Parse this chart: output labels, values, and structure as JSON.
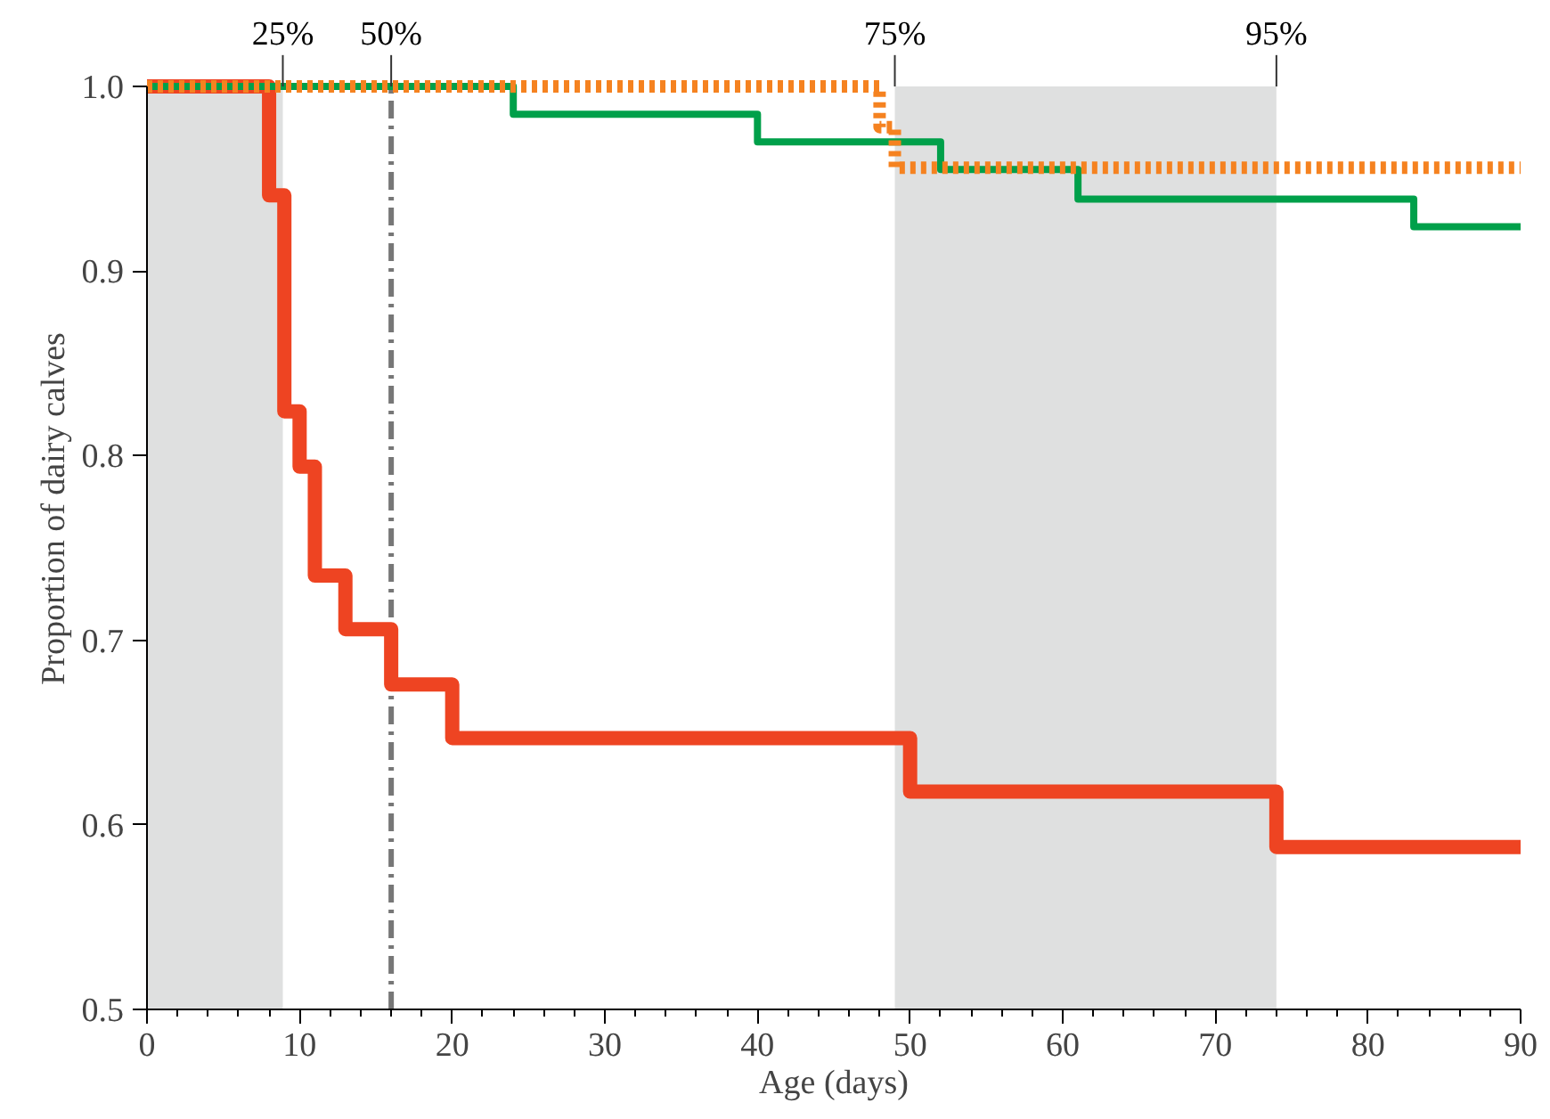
{
  "chart_data": {
    "type": "step",
    "xlabel": "Age (days)",
    "ylabel": "Proportion of dairy calves",
    "series": [
      {
        "color": "#ee4422",
        "line_style": "solid",
        "x": [
          0,
          8,
          9,
          10,
          11,
          13,
          16,
          20,
          50,
          74,
          90
        ],
        "values": [
          1.0,
          0.941,
          0.824,
          0.794,
          0.735,
          0.706,
          0.676,
          0.647,
          0.618,
          0.588,
          0.588
        ]
      },
      {
        "color": "#00a04a",
        "line_style": "solid",
        "x": [
          0,
          24,
          40,
          52,
          61,
          83,
          90
        ],
        "values": [
          1.0,
          0.985,
          0.97,
          0.955,
          0.939,
          0.924,
          0.924
        ]
      },
      {
        "color": "#f58220",
        "line_style": "dotted",
        "x": [
          0,
          48,
          49,
          90
        ],
        "values": [
          1.0,
          0.978,
          0.956,
          0.956
        ]
      }
    ],
    "xlim": [
      0,
      90
    ],
    "ylim": [
      0.5,
      1.0
    ],
    "xticks": [
      0,
      {
        "value": 2,
        "label": null
      },
      {
        "value": 4,
        "label": null
      },
      {
        "value": 6,
        "label": null
      },
      {
        "value": 8,
        "label": null
      },
      10,
      {
        "value": 12,
        "label": null
      },
      {
        "value": 14,
        "label": null
      },
      {
        "value": 16,
        "label": null
      },
      {
        "value": 18,
        "label": null
      },
      20,
      {
        "value": 22,
        "label": null
      },
      {
        "value": 24,
        "label": null
      },
      {
        "value": 26,
        "label": null
      },
      {
        "value": 28,
        "label": null
      },
      30,
      {
        "value": 32,
        "label": null
      },
      {
        "value": 34,
        "label": null
      },
      {
        "value": 36,
        "label": null
      },
      {
        "value": 38,
        "label": null
      },
      40,
      {
        "value": 42,
        "label": null
      },
      {
        "value": 44,
        "label": null
      },
      {
        "value": 46,
        "label": null
      },
      {
        "value": 48,
        "label": null
      },
      50,
      {
        "value": 52,
        "label": null
      },
      {
        "value": 54,
        "label": null
      },
      {
        "value": 56,
        "label": null
      },
      {
        "value": 58,
        "label": null
      },
      60,
      {
        "value": 62,
        "label": null
      },
      {
        "value": 64,
        "label": null
      },
      {
        "value": 66,
        "label": null
      },
      {
        "value": 68,
        "label": null
      },
      70,
      {
        "value": 72,
        "label": null
      },
      {
        "value": 74,
        "label": null
      },
      {
        "value": 76,
        "label": null
      },
      {
        "value": 78,
        "label": null
      },
      80,
      {
        "value": 82,
        "label": null
      },
      {
        "value": 84,
        "label": null
      },
      {
        "value": 86,
        "label": null
      },
      {
        "value": 88,
        "label": null
      },
      90
    ],
    "yticks": [
      0.5,
      0.6,
      0.7,
      0.8,
      0.9,
      {
        "value": 1.0,
        "label": "1.0"
      }
    ],
    "annotations": [
      {
        "text": "25%",
        "x": 8.9,
        "y": 1.0
      },
      {
        "text": "50%",
        "x": 16,
        "y": 1.0
      },
      {
        "text": "75%",
        "x": 49,
        "y": 1.0
      },
      {
        "text": "95%",
        "x": 74,
        "y": 1.0
      }
    ],
    "bands": [
      {
        "axis": "x",
        "from": 0,
        "to": 8.9,
        "color": "#dfe0e0"
      },
      {
        "axis": "x",
        "from": 49,
        "to": 74,
        "color": "#dfe0e0"
      }
    ],
    "ref_lines": [
      {
        "axis": "x",
        "value": 16,
        "color": "#777777",
        "line_style": "dashdot"
      }
    ],
    "grid": false,
    "marker": "none"
  }
}
